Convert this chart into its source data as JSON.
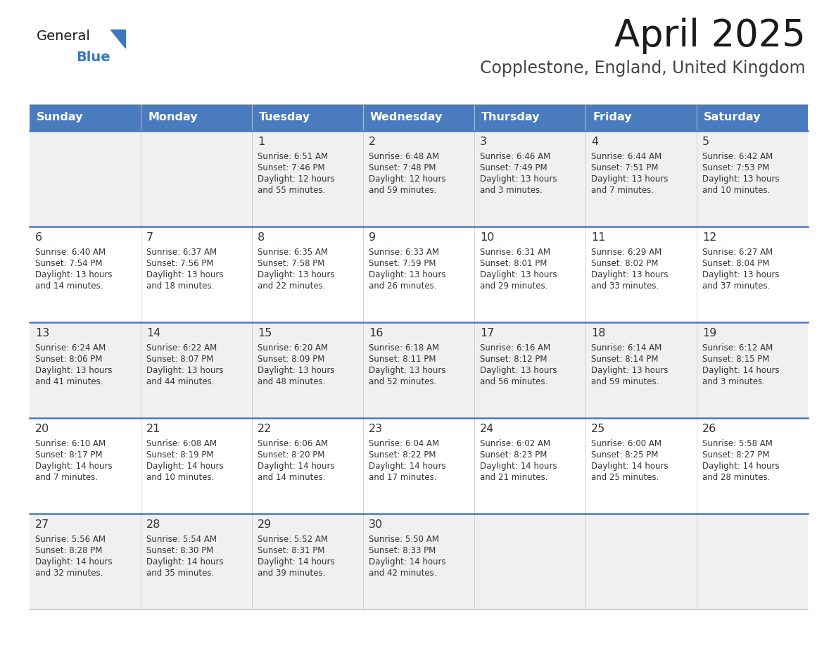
{
  "title": "April 2025",
  "subtitle": "Copplestone, England, United Kingdom",
  "days_of_week": [
    "Sunday",
    "Monday",
    "Tuesday",
    "Wednesday",
    "Thursday",
    "Friday",
    "Saturday"
  ],
  "header_bg": "#4b7bbf",
  "header_text": "#FFFFFF",
  "row_bg_light": "#F0F0F0",
  "row_bg_white": "#FFFFFF",
  "row_separator": "#4b7bbf",
  "cell_text": "#333333",
  "title_color": "#1a1a1a",
  "subtitle_color": "#444444",
  "logo_general_color": "#1a1a1a",
  "logo_blue_color": "#3b78c0",
  "weeks": [
    [
      {
        "day": "",
        "sunrise": "",
        "sunset": "",
        "daylight": ""
      },
      {
        "day": "",
        "sunrise": "",
        "sunset": "",
        "daylight": ""
      },
      {
        "day": "1",
        "sunrise": "Sunrise: 6:51 AM",
        "sunset": "Sunset: 7:46 PM",
        "daylight": "Daylight: 12 hours\nand 55 minutes."
      },
      {
        "day": "2",
        "sunrise": "Sunrise: 6:48 AM",
        "sunset": "Sunset: 7:48 PM",
        "daylight": "Daylight: 12 hours\nand 59 minutes."
      },
      {
        "day": "3",
        "sunrise": "Sunrise: 6:46 AM",
        "sunset": "Sunset: 7:49 PM",
        "daylight": "Daylight: 13 hours\nand 3 minutes."
      },
      {
        "day": "4",
        "sunrise": "Sunrise: 6:44 AM",
        "sunset": "Sunset: 7:51 PM",
        "daylight": "Daylight: 13 hours\nand 7 minutes."
      },
      {
        "day": "5",
        "sunrise": "Sunrise: 6:42 AM",
        "sunset": "Sunset: 7:53 PM",
        "daylight": "Daylight: 13 hours\nand 10 minutes."
      }
    ],
    [
      {
        "day": "6",
        "sunrise": "Sunrise: 6:40 AM",
        "sunset": "Sunset: 7:54 PM",
        "daylight": "Daylight: 13 hours\nand 14 minutes."
      },
      {
        "day": "7",
        "sunrise": "Sunrise: 6:37 AM",
        "sunset": "Sunset: 7:56 PM",
        "daylight": "Daylight: 13 hours\nand 18 minutes."
      },
      {
        "day": "8",
        "sunrise": "Sunrise: 6:35 AM",
        "sunset": "Sunset: 7:58 PM",
        "daylight": "Daylight: 13 hours\nand 22 minutes."
      },
      {
        "day": "9",
        "sunrise": "Sunrise: 6:33 AM",
        "sunset": "Sunset: 7:59 PM",
        "daylight": "Daylight: 13 hours\nand 26 minutes."
      },
      {
        "day": "10",
        "sunrise": "Sunrise: 6:31 AM",
        "sunset": "Sunset: 8:01 PM",
        "daylight": "Daylight: 13 hours\nand 29 minutes."
      },
      {
        "day": "11",
        "sunrise": "Sunrise: 6:29 AM",
        "sunset": "Sunset: 8:02 PM",
        "daylight": "Daylight: 13 hours\nand 33 minutes."
      },
      {
        "day": "12",
        "sunrise": "Sunrise: 6:27 AM",
        "sunset": "Sunset: 8:04 PM",
        "daylight": "Daylight: 13 hours\nand 37 minutes."
      }
    ],
    [
      {
        "day": "13",
        "sunrise": "Sunrise: 6:24 AM",
        "sunset": "Sunset: 8:06 PM",
        "daylight": "Daylight: 13 hours\nand 41 minutes."
      },
      {
        "day": "14",
        "sunrise": "Sunrise: 6:22 AM",
        "sunset": "Sunset: 8:07 PM",
        "daylight": "Daylight: 13 hours\nand 44 minutes."
      },
      {
        "day": "15",
        "sunrise": "Sunrise: 6:20 AM",
        "sunset": "Sunset: 8:09 PM",
        "daylight": "Daylight: 13 hours\nand 48 minutes."
      },
      {
        "day": "16",
        "sunrise": "Sunrise: 6:18 AM",
        "sunset": "Sunset: 8:11 PM",
        "daylight": "Daylight: 13 hours\nand 52 minutes."
      },
      {
        "day": "17",
        "sunrise": "Sunrise: 6:16 AM",
        "sunset": "Sunset: 8:12 PM",
        "daylight": "Daylight: 13 hours\nand 56 minutes."
      },
      {
        "day": "18",
        "sunrise": "Sunrise: 6:14 AM",
        "sunset": "Sunset: 8:14 PM",
        "daylight": "Daylight: 13 hours\nand 59 minutes."
      },
      {
        "day": "19",
        "sunrise": "Sunrise: 6:12 AM",
        "sunset": "Sunset: 8:15 PM",
        "daylight": "Daylight: 14 hours\nand 3 minutes."
      }
    ],
    [
      {
        "day": "20",
        "sunrise": "Sunrise: 6:10 AM",
        "sunset": "Sunset: 8:17 PM",
        "daylight": "Daylight: 14 hours\nand 7 minutes."
      },
      {
        "day": "21",
        "sunrise": "Sunrise: 6:08 AM",
        "sunset": "Sunset: 8:19 PM",
        "daylight": "Daylight: 14 hours\nand 10 minutes."
      },
      {
        "day": "22",
        "sunrise": "Sunrise: 6:06 AM",
        "sunset": "Sunset: 8:20 PM",
        "daylight": "Daylight: 14 hours\nand 14 minutes."
      },
      {
        "day": "23",
        "sunrise": "Sunrise: 6:04 AM",
        "sunset": "Sunset: 8:22 PM",
        "daylight": "Daylight: 14 hours\nand 17 minutes."
      },
      {
        "day": "24",
        "sunrise": "Sunrise: 6:02 AM",
        "sunset": "Sunset: 8:23 PM",
        "daylight": "Daylight: 14 hours\nand 21 minutes."
      },
      {
        "day": "25",
        "sunrise": "Sunrise: 6:00 AM",
        "sunset": "Sunset: 8:25 PM",
        "daylight": "Daylight: 14 hours\nand 25 minutes."
      },
      {
        "day": "26",
        "sunrise": "Sunrise: 5:58 AM",
        "sunset": "Sunset: 8:27 PM",
        "daylight": "Daylight: 14 hours\nand 28 minutes."
      }
    ],
    [
      {
        "day": "27",
        "sunrise": "Sunrise: 5:56 AM",
        "sunset": "Sunset: 8:28 PM",
        "daylight": "Daylight: 14 hours\nand 32 minutes."
      },
      {
        "day": "28",
        "sunrise": "Sunrise: 5:54 AM",
        "sunset": "Sunset: 8:30 PM",
        "daylight": "Daylight: 14 hours\nand 35 minutes."
      },
      {
        "day": "29",
        "sunrise": "Sunrise: 5:52 AM",
        "sunset": "Sunset: 8:31 PM",
        "daylight": "Daylight: 14 hours\nand 39 minutes."
      },
      {
        "day": "30",
        "sunrise": "Sunrise: 5:50 AM",
        "sunset": "Sunset: 8:33 PM",
        "daylight": "Daylight: 14 hours\nand 42 minutes."
      },
      {
        "day": "",
        "sunrise": "",
        "sunset": "",
        "daylight": ""
      },
      {
        "day": "",
        "sunrise": "",
        "sunset": "",
        "daylight": ""
      },
      {
        "day": "",
        "sunrise": "",
        "sunset": "",
        "daylight": ""
      }
    ]
  ]
}
